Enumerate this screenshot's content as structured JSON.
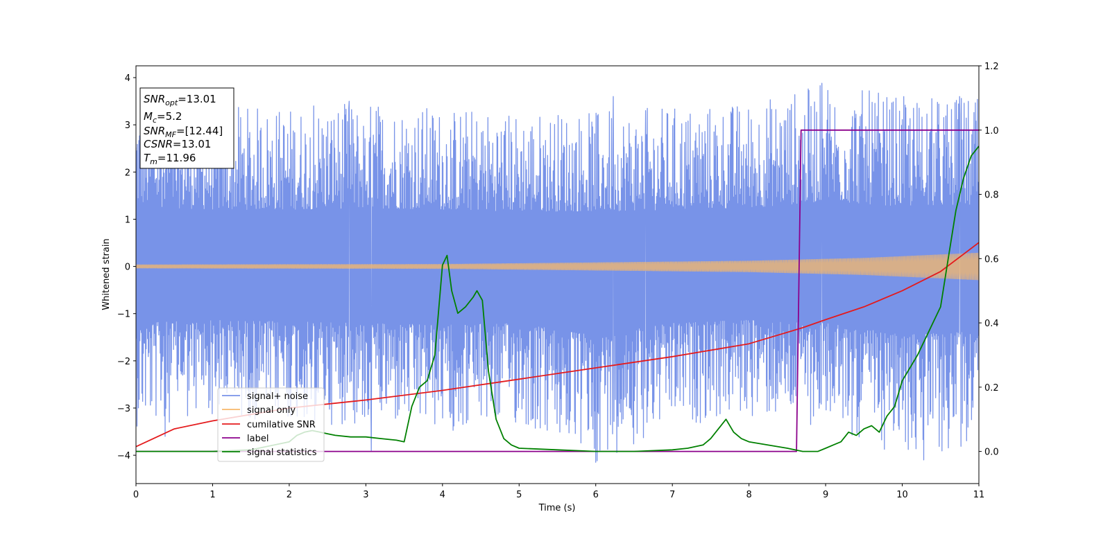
{
  "chart_data": {
    "type": "line",
    "xlabel": "Time (s)",
    "ylabel": "Whitened strain",
    "xlim": [
      0,
      11
    ],
    "ylim": [
      -4.6,
      4.25
    ],
    "y2lim": [
      -0.1,
      1.2
    ],
    "x_ticks": [
      0,
      1,
      2,
      3,
      4,
      5,
      6,
      7,
      8,
      9,
      10,
      11
    ],
    "y_ticks": [
      -4,
      -3,
      -2,
      -1,
      0,
      1,
      2,
      3,
      4
    ],
    "y2_ticks": [
      0.0,
      0.2,
      0.4,
      0.6,
      0.8,
      1.0,
      1.2
    ],
    "grid": false,
    "legend_position": "lower-left",
    "info_box": {
      "snr_opt": {
        "name": "SNR",
        "sub": "opt",
        "value": "=13.01"
      },
      "mc": {
        "name": "M",
        "sub": "c",
        "value": "=5.2"
      },
      "snr_mf": {
        "name": "SNR",
        "sub": "MF",
        "value": "=[12.44]"
      },
      "csnr": {
        "name": "CSNR",
        "value": "=13.01"
      },
      "tm": {
        "name": "T",
        "sub": "m",
        "value": "=11.96"
      }
    },
    "series": [
      {
        "name": "signal+ noise",
        "color": "#7893e8",
        "axis": "left",
        "kind": "noise",
        "envelope": {
          "t": [
            0,
            0.5,
            1,
            2,
            3,
            4,
            5,
            6,
            7,
            8,
            9,
            10,
            11
          ],
          "high": [
            3.7,
            3.5,
            3.4,
            3.4,
            3.5,
            3.4,
            3.3,
            3.3,
            3.4,
            3.5,
            3.9,
            3.6,
            3.6
          ],
          "low": [
            -3.4,
            -3.3,
            -3.2,
            -3.3,
            -3.4,
            -3.5,
            -3.4,
            -4.15,
            -3.4,
            -3.2,
            -3.4,
            -4.1,
            -3.9
          ]
        },
        "spikes": [
          [
            0.38,
            -3.6
          ],
          [
            2.32,
            3.4
          ],
          [
            2.78,
            3.5
          ],
          [
            3.07,
            -3.9
          ],
          [
            4.1,
            -3.2
          ],
          [
            6.0,
            -4.15
          ],
          [
            6.23,
            3.6
          ],
          [
            6.65,
            3.3
          ],
          [
            8.95,
            3.88
          ],
          [
            10.28,
            -4.1
          ],
          [
            10.75,
            3.6
          ]
        ]
      },
      {
        "name": "signal only",
        "color": "#f7b86a",
        "axis": "left",
        "kind": "chirp",
        "amplitude": {
          "t": [
            0,
            4,
            8,
            9.5,
            11
          ],
          "a": [
            0.04,
            0.05,
            0.12,
            0.18,
            0.29
          ]
        }
      },
      {
        "name": "cumilative SNR",
        "color": "#e41a1c",
        "axis": "right",
        "x": [
          0,
          0.5,
          1,
          2,
          3,
          4,
          5,
          6,
          7,
          8,
          8.7,
          9,
          9.5,
          10,
          10.5,
          11
        ],
        "y": [
          0.015,
          0.07,
          0.095,
          0.135,
          0.16,
          0.19,
          0.225,
          0.26,
          0.295,
          0.335,
          0.385,
          0.41,
          0.45,
          0.5,
          0.56,
          0.65
        ]
      },
      {
        "name": "label",
        "color": "#8b008b",
        "axis": "right",
        "x": [
          0,
          8.62,
          8.68,
          11
        ],
        "y": [
          0,
          0,
          1,
          1
        ]
      },
      {
        "name": "signal statistics",
        "color": "#008000",
        "axis": "right",
        "x": [
          0,
          0.5,
          1,
          1.5,
          2,
          2.1,
          2.2,
          2.3,
          2.4,
          2.5,
          2.6,
          2.8,
          3.0,
          3.2,
          3.4,
          3.5,
          3.6,
          3.7,
          3.8,
          3.9,
          4.0,
          4.06,
          4.12,
          4.2,
          4.3,
          4.4,
          4.45,
          4.52,
          4.6,
          4.7,
          4.8,
          4.9,
          5.0,
          5.5,
          6.0,
          6.5,
          7.0,
          7.2,
          7.4,
          7.5,
          7.6,
          7.7,
          7.8,
          7.9,
          8.0,
          8.5,
          8.7,
          8.9,
          9.0,
          9.1,
          9.2,
          9.3,
          9.4,
          9.5,
          9.6,
          9.7,
          9.8,
          9.9,
          10.0,
          10.1,
          10.2,
          10.3,
          10.4,
          10.5,
          10.6,
          10.7,
          10.8,
          10.9,
          11.0
        ],
        "y": [
          0,
          0.0,
          0.0,
          0.005,
          0.03,
          0.05,
          0.06,
          0.065,
          0.06,
          0.055,
          0.05,
          0.045,
          0.045,
          0.04,
          0.035,
          0.03,
          0.14,
          0.2,
          0.22,
          0.3,
          0.58,
          0.61,
          0.5,
          0.43,
          0.45,
          0.48,
          0.5,
          0.47,
          0.25,
          0.1,
          0.04,
          0.02,
          0.01,
          0.005,
          0.0,
          0.0,
          0.005,
          0.01,
          0.02,
          0.04,
          0.07,
          0.1,
          0.06,
          0.04,
          0.03,
          0.01,
          0.0,
          0.0,
          0.01,
          0.02,
          0.03,
          0.06,
          0.05,
          0.07,
          0.08,
          0.06,
          0.11,
          0.14,
          0.22,
          0.26,
          0.3,
          0.35,
          0.4,
          0.45,
          0.6,
          0.75,
          0.85,
          0.92,
          0.95
        ]
      }
    ]
  }
}
